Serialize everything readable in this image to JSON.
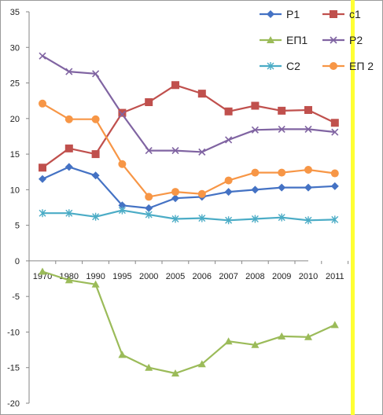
{
  "chart_data": {
    "type": "line",
    "categories": [
      "1970",
      "1980",
      "1990",
      "1995",
      "2000",
      "2005",
      "2006",
      "2007",
      "2008",
      "2009",
      "2010",
      "2011"
    ],
    "ylim": [
      -20,
      35
    ],
    "yticks": [
      -20,
      -15,
      -10,
      -5,
      0,
      5,
      10,
      15,
      20,
      25,
      30,
      35
    ],
    "grid": false,
    "legend_position": "top-right",
    "series": [
      {
        "name": "P1",
        "color": "#4472C4",
        "marker": "diamond",
        "values": [
          11.5,
          13.2,
          12.0,
          7.8,
          7.4,
          8.8,
          9.0,
          9.7,
          10.0,
          10.3,
          10.3,
          10.5
        ]
      },
      {
        "name": "c1",
        "color": "#C0504D",
        "marker": "square",
        "values": [
          13.1,
          15.8,
          15.0,
          20.8,
          22.3,
          24.7,
          23.5,
          21.0,
          21.8,
          21.1,
          21.2,
          19.4
        ]
      },
      {
        "name": "ЕП1",
        "color": "#9BBB59",
        "marker": "triangle",
        "values": [
          -1.5,
          -2.7,
          -3.3,
          -13.2,
          -15.0,
          -15.8,
          -14.5,
          -11.3,
          -11.8,
          -10.6,
          -10.7,
          -9.0
        ]
      },
      {
        "name": "P2",
        "color": "#8064A2",
        "marker": "x",
        "values": [
          28.8,
          26.6,
          26.3,
          20.6,
          15.5,
          15.5,
          15.3,
          17.0,
          18.4,
          18.5,
          18.5,
          18.1
        ]
      },
      {
        "name": "C2",
        "color": "#4BACC6",
        "marker": "star",
        "values": [
          6.7,
          6.7,
          6.2,
          7.1,
          6.5,
          5.9,
          6.0,
          5.7,
          5.9,
          6.1,
          5.7,
          5.8
        ]
      },
      {
        "name": "ЕП 2",
        "color": "#F79646",
        "marker": "circle",
        "values": [
          22.1,
          19.9,
          19.9,
          13.6,
          9.0,
          9.7,
          9.4,
          11.3,
          12.4,
          12.4,
          12.8,
          12.3
        ]
      }
    ]
  }
}
